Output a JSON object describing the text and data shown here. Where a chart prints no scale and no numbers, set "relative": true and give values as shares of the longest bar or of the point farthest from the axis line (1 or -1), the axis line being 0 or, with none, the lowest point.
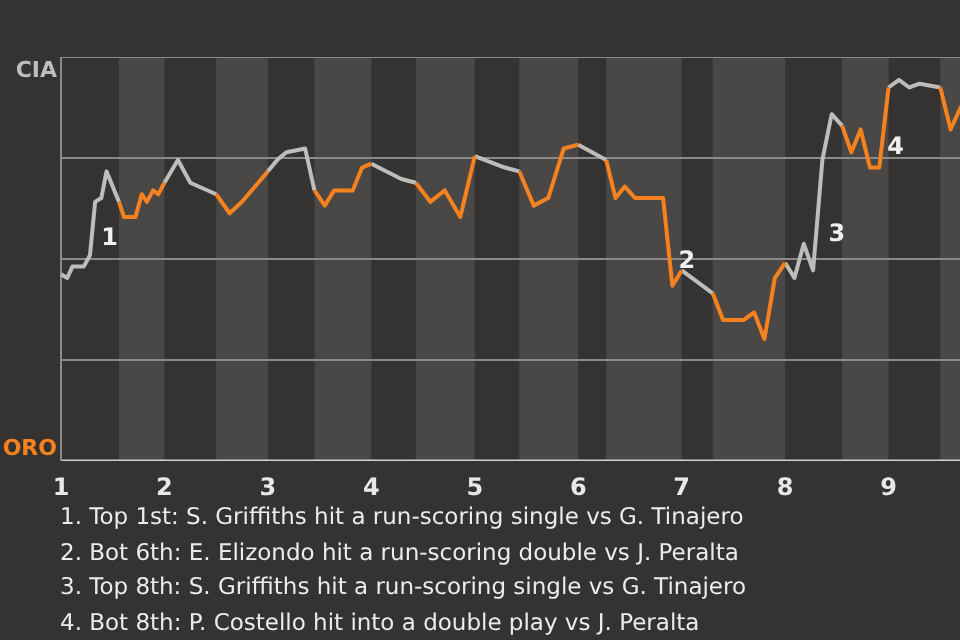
{
  "chart_data": {
    "type": "line",
    "relative": true,
    "x": [
      1,
      1.06,
      1.11,
      1.22,
      1.28,
      1.33,
      1.39,
      1.44,
      1.56,
      1.61,
      1.72,
      1.78,
      1.83,
      1.89,
      1.94,
      2,
      2.13,
      2.25,
      2.5,
      2.63,
      2.75,
      3,
      3.09,
      3.18,
      3.36,
      3.45,
      3.55,
      3.64,
      3.82,
      3.91,
      4,
      4.29,
      4.43,
      4.57,
      4.71,
      4.86,
      5,
      5.29,
      5.43,
      5.57,
      5.71,
      5.86,
      6,
      6.27,
      6.36,
      6.45,
      6.55,
      6.82,
      6.91,
      7,
      7.2,
      7.3,
      7.4,
      7.6,
      7.7,
      7.8,
      7.9,
      8,
      8.09,
      8.18,
      8.27,
      8.36,
      8.45,
      8.55,
      8.64,
      8.73,
      8.82,
      8.91,
      9,
      9.1,
      9.2,
      9.3,
      9.5,
      9.6,
      9.7
    ],
    "xlim": [
      1,
      9.7
    ],
    "xticks": [
      1,
      2,
      3,
      4,
      5,
      6,
      7,
      8,
      9
    ],
    "tick_labels": "x",
    "series": [
      {
        "name": "CIA",
        "color": "#bdbdbd",
        "values": [
          0.49,
          0.48,
          0.51,
          0.51,
          0.54,
          0.68,
          0.69,
          0.76,
          0.68,
          null,
          null,
          null,
          null,
          null,
          null,
          0.73,
          0.79,
          0.73,
          0.7,
          null,
          null,
          0.76,
          0.79,
          0.81,
          0.82,
          0.71,
          null,
          null,
          null,
          null,
          0.78,
          0.74,
          0.73,
          null,
          null,
          null,
          0.8,
          0.77,
          0.76,
          null,
          null,
          null,
          0.83,
          0.79,
          null,
          null,
          null,
          null,
          null,
          0.5,
          0.46,
          0.44,
          null,
          null,
          null,
          null,
          null,
          0.52,
          0.48,
          0.57,
          0.5,
          0.79,
          0.91,
          0.88,
          null,
          null,
          null,
          null,
          0.98,
          1,
          0.98,
          0.99,
          0.98,
          null,
          null
        ]
      },
      {
        "name": "ORO",
        "color": "#f5821f",
        "values": [
          null,
          null,
          null,
          null,
          null,
          null,
          null,
          null,
          0.68,
          0.64,
          0.64,
          0.7,
          0.68,
          0.71,
          0.7,
          0.73,
          null,
          null,
          0.7,
          0.65,
          0.68,
          0.76,
          null,
          null,
          null,
          0.71,
          0.67,
          0.71,
          0.71,
          0.77,
          0.78,
          null,
          0.73,
          0.68,
          0.71,
          0.64,
          0.8,
          null,
          0.76,
          0.67,
          0.69,
          0.82,
          0.83,
          null,
          null,
          null,
          null,
          null,
          null,
          null,
          null,
          0.44,
          0.37,
          0.37,
          0.39,
          0.32,
          0.48,
          0.52,
          null,
          null,
          null,
          null,
          null,
          0.88,
          0.81,
          0.87,
          0.77,
          0.77,
          0.98,
          null,
          null,
          null,
          0.98,
          0.87,
          0.93
        ]
      },
      {
        "color": "#f5821f",
        "values": [
          null,
          null,
          null,
          null,
          null,
          null,
          null,
          null,
          null,
          null,
          null,
          null,
          null,
          null,
          null,
          null,
          null,
          null,
          null,
          null,
          null,
          null,
          null,
          null,
          null,
          null,
          null,
          null,
          null,
          null,
          null,
          null,
          null,
          null,
          null,
          null,
          null,
          null,
          null,
          null,
          null,
          null,
          null,
          0.79,
          0.69,
          0.72,
          0.69,
          0.69,
          0.46,
          0.5,
          null,
          null,
          null,
          null,
          null,
          null,
          null,
          null,
          null,
          null,
          null,
          null,
          null,
          null,
          null,
          null,
          null,
          null,
          null,
          null,
          null,
          null,
          null,
          null,
          null
        ]
      }
    ],
    "grid": "y",
    "bands": [
      {
        "axis": "x",
        "from": 1.56,
        "to": 2,
        "color": "#4a4846"
      },
      {
        "axis": "x",
        "from": 2.5,
        "to": 3,
        "color": "#4a4846"
      },
      {
        "axis": "x",
        "from": 3.45,
        "to": 4,
        "color": "#4a4846"
      },
      {
        "axis": "x",
        "from": 4.43,
        "to": 5,
        "color": "#4a4846"
      },
      {
        "axis": "x",
        "from": 5.43,
        "to": 6,
        "color": "#4a4846"
      },
      {
        "axis": "x",
        "from": 6.27,
        "to": 7,
        "color": "#4a4846"
      },
      {
        "axis": "x",
        "from": 7.3,
        "to": 8,
        "color": "#4a4846"
      },
      {
        "axis": "x",
        "from": 8.55,
        "to": 9,
        "color": "#4a4846"
      },
      {
        "axis": "x",
        "from": 9.5,
        "to": 9.7,
        "color": "#4a4846"
      }
    ],
    "annotations": [
      {
        "text": "1",
        "x": 1.33,
        "y": 0.59
      },
      {
        "text": "2",
        "x": 6.91,
        "y": 0.53
      },
      {
        "text": "3",
        "x": 8.36,
        "y": 0.6
      },
      {
        "text": "4",
        "x": 8.93,
        "y": 0.83
      },
      "1. Top 1st: S. Griffiths hit a run-scoring single vs G. Tinajero",
      "2. Bot 6th: E. Elizondo hit a run-scoring double vs J. Peralta",
      "3. Top 8th: S. Griffiths hit a run-scoring single vs G. Tinajero",
      "4. Bot 8th: P. Costello hit into a double play vs J. Peralta"
    ]
  }
}
